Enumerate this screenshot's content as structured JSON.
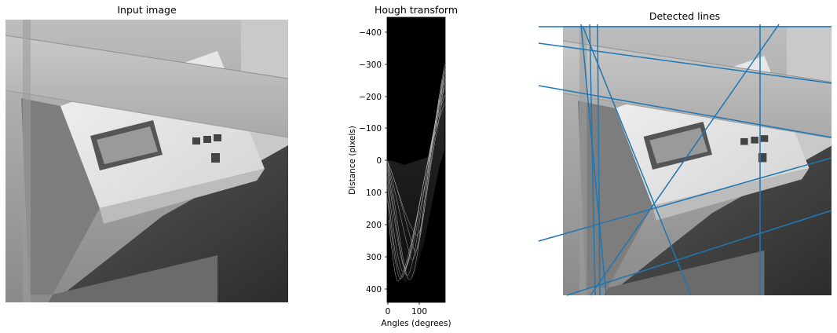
{
  "panels": {
    "input": {
      "title": "Input image"
    },
    "hough": {
      "title": "Hough transform",
      "xlabel": "Angles (degrees)",
      "ylabel": "Distance (pixels)"
    },
    "detected": {
      "title": "Detected lines"
    }
  },
  "colors": {
    "line": "#1f77b4",
    "background": "#ffffff",
    "text": "#000000"
  },
  "chart_data": [
    {
      "type": "image",
      "title": "Input image",
      "description_colormap": "gray"
    },
    {
      "type": "heatmap",
      "title": "Hough transform",
      "xlabel": "Angles (degrees)",
      "ylabel": "Distance (pixels)",
      "xlim": [
        0,
        180
      ],
      "ylim": [
        450,
        -450
      ],
      "xticks": [
        0,
        100
      ],
      "yticks": [
        -400,
        -300,
        -200,
        -100,
        0,
        100,
        200,
        300,
        400
      ],
      "colormap": "gray"
    },
    {
      "type": "line",
      "title": "Detected lines",
      "color": "#1f77b4",
      "line_count": 11
    }
  ]
}
